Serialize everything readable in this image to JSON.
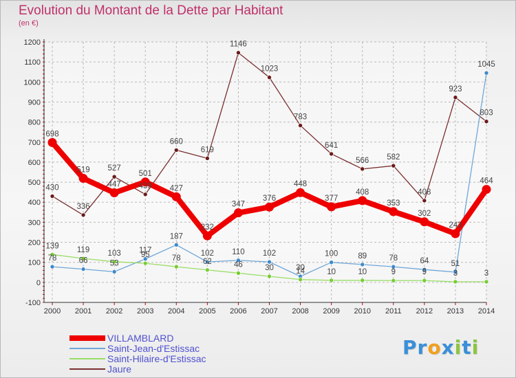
{
  "chart_data": {
    "type": "line",
    "title": "Evolution du Montant de la Dette par Habitant",
    "subtitle": "(en €)",
    "xlabel": "",
    "ylabel": "",
    "categories": [
      "2000",
      "2001",
      "2002",
      "2003",
      "2004",
      "2005",
      "2006",
      "2007",
      "2008",
      "2009",
      "2010",
      "2011",
      "2012",
      "2013",
      "2014"
    ],
    "ylim": [
      -100,
      1200
    ],
    "yticks": [
      -100,
      0,
      100,
      200,
      300,
      400,
      500,
      600,
      700,
      800,
      900,
      1000,
      1100,
      1200
    ],
    "grid": true,
    "legend_position": "bottom-left",
    "series": [
      {
        "name": "VILLAMBLARD",
        "color": "#ee0000",
        "emphasis": true,
        "values": [
          698,
          519,
          447,
          501,
          427,
          232,
          347,
          376,
          448,
          377,
          408,
          353,
          302,
          243,
          464
        ]
      },
      {
        "name": "Saint-Jean-d'Estissac",
        "color": "#6fa6d8",
        "marker": "#3f89c9",
        "emphasis": false,
        "values": [
          78,
          66,
          53,
          117,
          187,
          102,
          110,
          102,
          30,
          100,
          89,
          78,
          64,
          51,
          1045
        ]
      },
      {
        "name": "Saint-Hilaire-d'Estissac",
        "color": "#99dd66",
        "marker": "#77cc33",
        "emphasis": false,
        "values": [
          139,
          119,
          103,
          95,
          78,
          62,
          46,
          30,
          14,
          10,
          10,
          9,
          9,
          3,
          3
        ]
      },
      {
        "name": "Jaure",
        "color": "#7a2e2e",
        "marker": "#6b1a1a",
        "emphasis": false,
        "values": [
          430,
          336,
          527,
          439,
          660,
          619,
          1146,
          1023,
          783,
          641,
          566,
          582,
          408,
          923,
          803
        ]
      }
    ]
  },
  "logo": {
    "text": "Proxiti",
    "letters": [
      {
        "ch": "P",
        "color": "#3a8fd8"
      },
      {
        "ch": "r",
        "color": "#3a8fd8"
      },
      {
        "ch": "o",
        "color": "#f0a020"
      },
      {
        "ch": "x",
        "color": "#3a8fd8"
      },
      {
        "ch": "i",
        "color": "#8cc63f"
      },
      {
        "ch": "t",
        "color": "#3a8fd8"
      },
      {
        "ch": "i",
        "color": "#8cc63f"
      }
    ]
  }
}
